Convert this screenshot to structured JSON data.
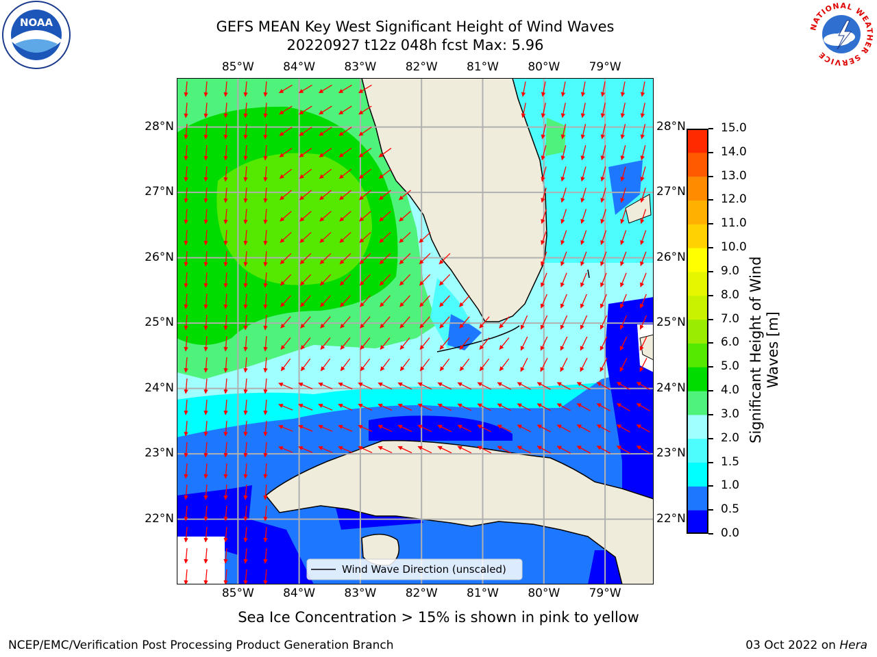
{
  "title": {
    "line1": "GEFS MEAN Key West Significant Height of Wind Waves",
    "line2": "20220927 t12z 048h fcst   Max: 5.96"
  },
  "map": {
    "lon_labels": [
      "85°W",
      "84°W",
      "83°W",
      "82°W",
      "81°W",
      "80°W",
      "79°W"
    ],
    "lat_labels": [
      "28°N",
      "27°N",
      "26°N",
      "25°N",
      "24°N",
      "23°N",
      "22°N"
    ],
    "legend_label": "Wind Wave Direction (unscaled)",
    "colors": {
      "land": "#efecdb",
      "coast": "#000000",
      "arrow": "#ff0000",
      "grid": "#b0b0b0"
    }
  },
  "colorbar": {
    "label_line1": "Significant Height of Wind",
    "label_line2": "Waves [m]",
    "ticks": [
      "0.0",
      "0.5",
      "1.0",
      "1.5",
      "2.0",
      "3.0",
      "4.0",
      "5.0",
      "6.0",
      "7.0",
      "8.0",
      "9.0",
      "10.0",
      "11.0",
      "12.0",
      "13.0",
      "14.0",
      "15.0"
    ],
    "colors": [
      "#0000ff",
      "#1e78ff",
      "#00ffff",
      "#4dfcfc",
      "#a0ffff",
      "#4ff27a",
      "#00dc00",
      "#55e800",
      "#9aed00",
      "#c8f200",
      "#e6f500",
      "#ffff00",
      "#ffd200",
      "#ffb000",
      "#ff8c00",
      "#ff5a00",
      "#ff2a00",
      "#ff0000"
    ]
  },
  "footnote": "Sea Ice Concentration > 15% is shown in pink to yellow",
  "credit": "NCEP/EMC/Verification Post Processing Product Generation Branch",
  "date_prefix": "03 Oct 2022 on ",
  "date_machine": "Hera",
  "logos": {
    "left": "NOAA",
    "right_text": "NATIONAL WEATHER SERVICE"
  }
}
